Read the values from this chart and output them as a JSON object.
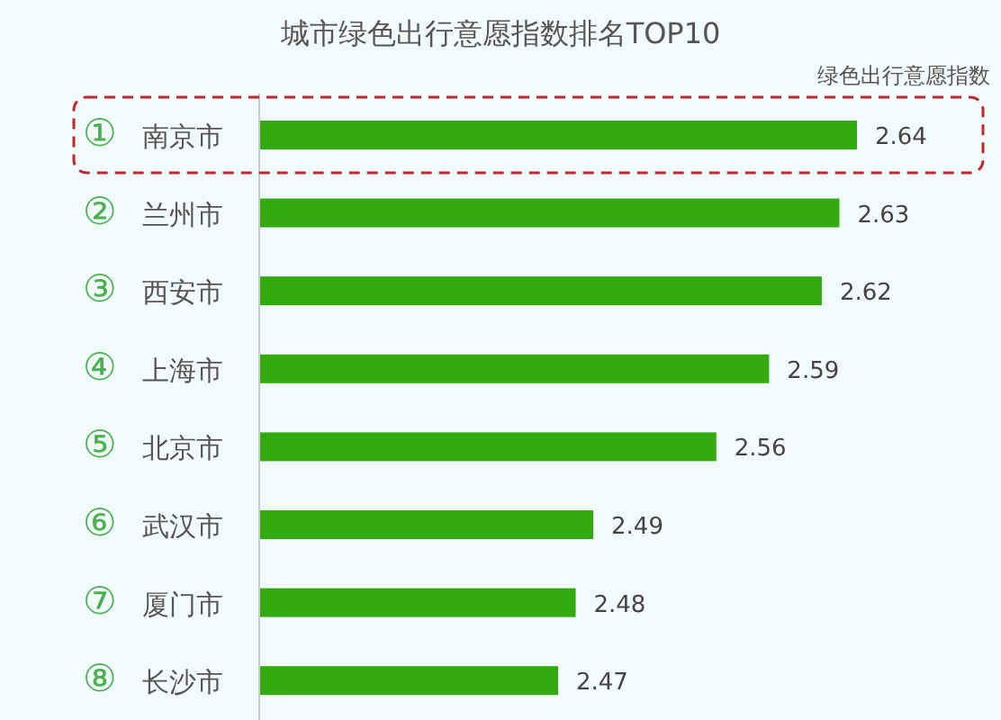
{
  "chart_data": {
    "type": "bar",
    "orientation": "horizontal",
    "title": "城市绿色出行意愿指数排名TOP10",
    "xlabel": "绿色出行意愿指数",
    "categories": [
      "① 南京市",
      "② 兰州市",
      "③ 西安市",
      "④ 上海市",
      "⑤ 北京市",
      "⑥ 武汉市",
      "⑦ 厦门市",
      "⑧ 长沙市"
    ],
    "values": [
      2.64,
      2.63,
      2.62,
      2.59,
      2.56,
      2.49,
      2.48,
      2.47
    ],
    "color": "#33aa0e",
    "xlim": [
      2.3,
      2.64
    ],
    "data_labels": true
  }
}
